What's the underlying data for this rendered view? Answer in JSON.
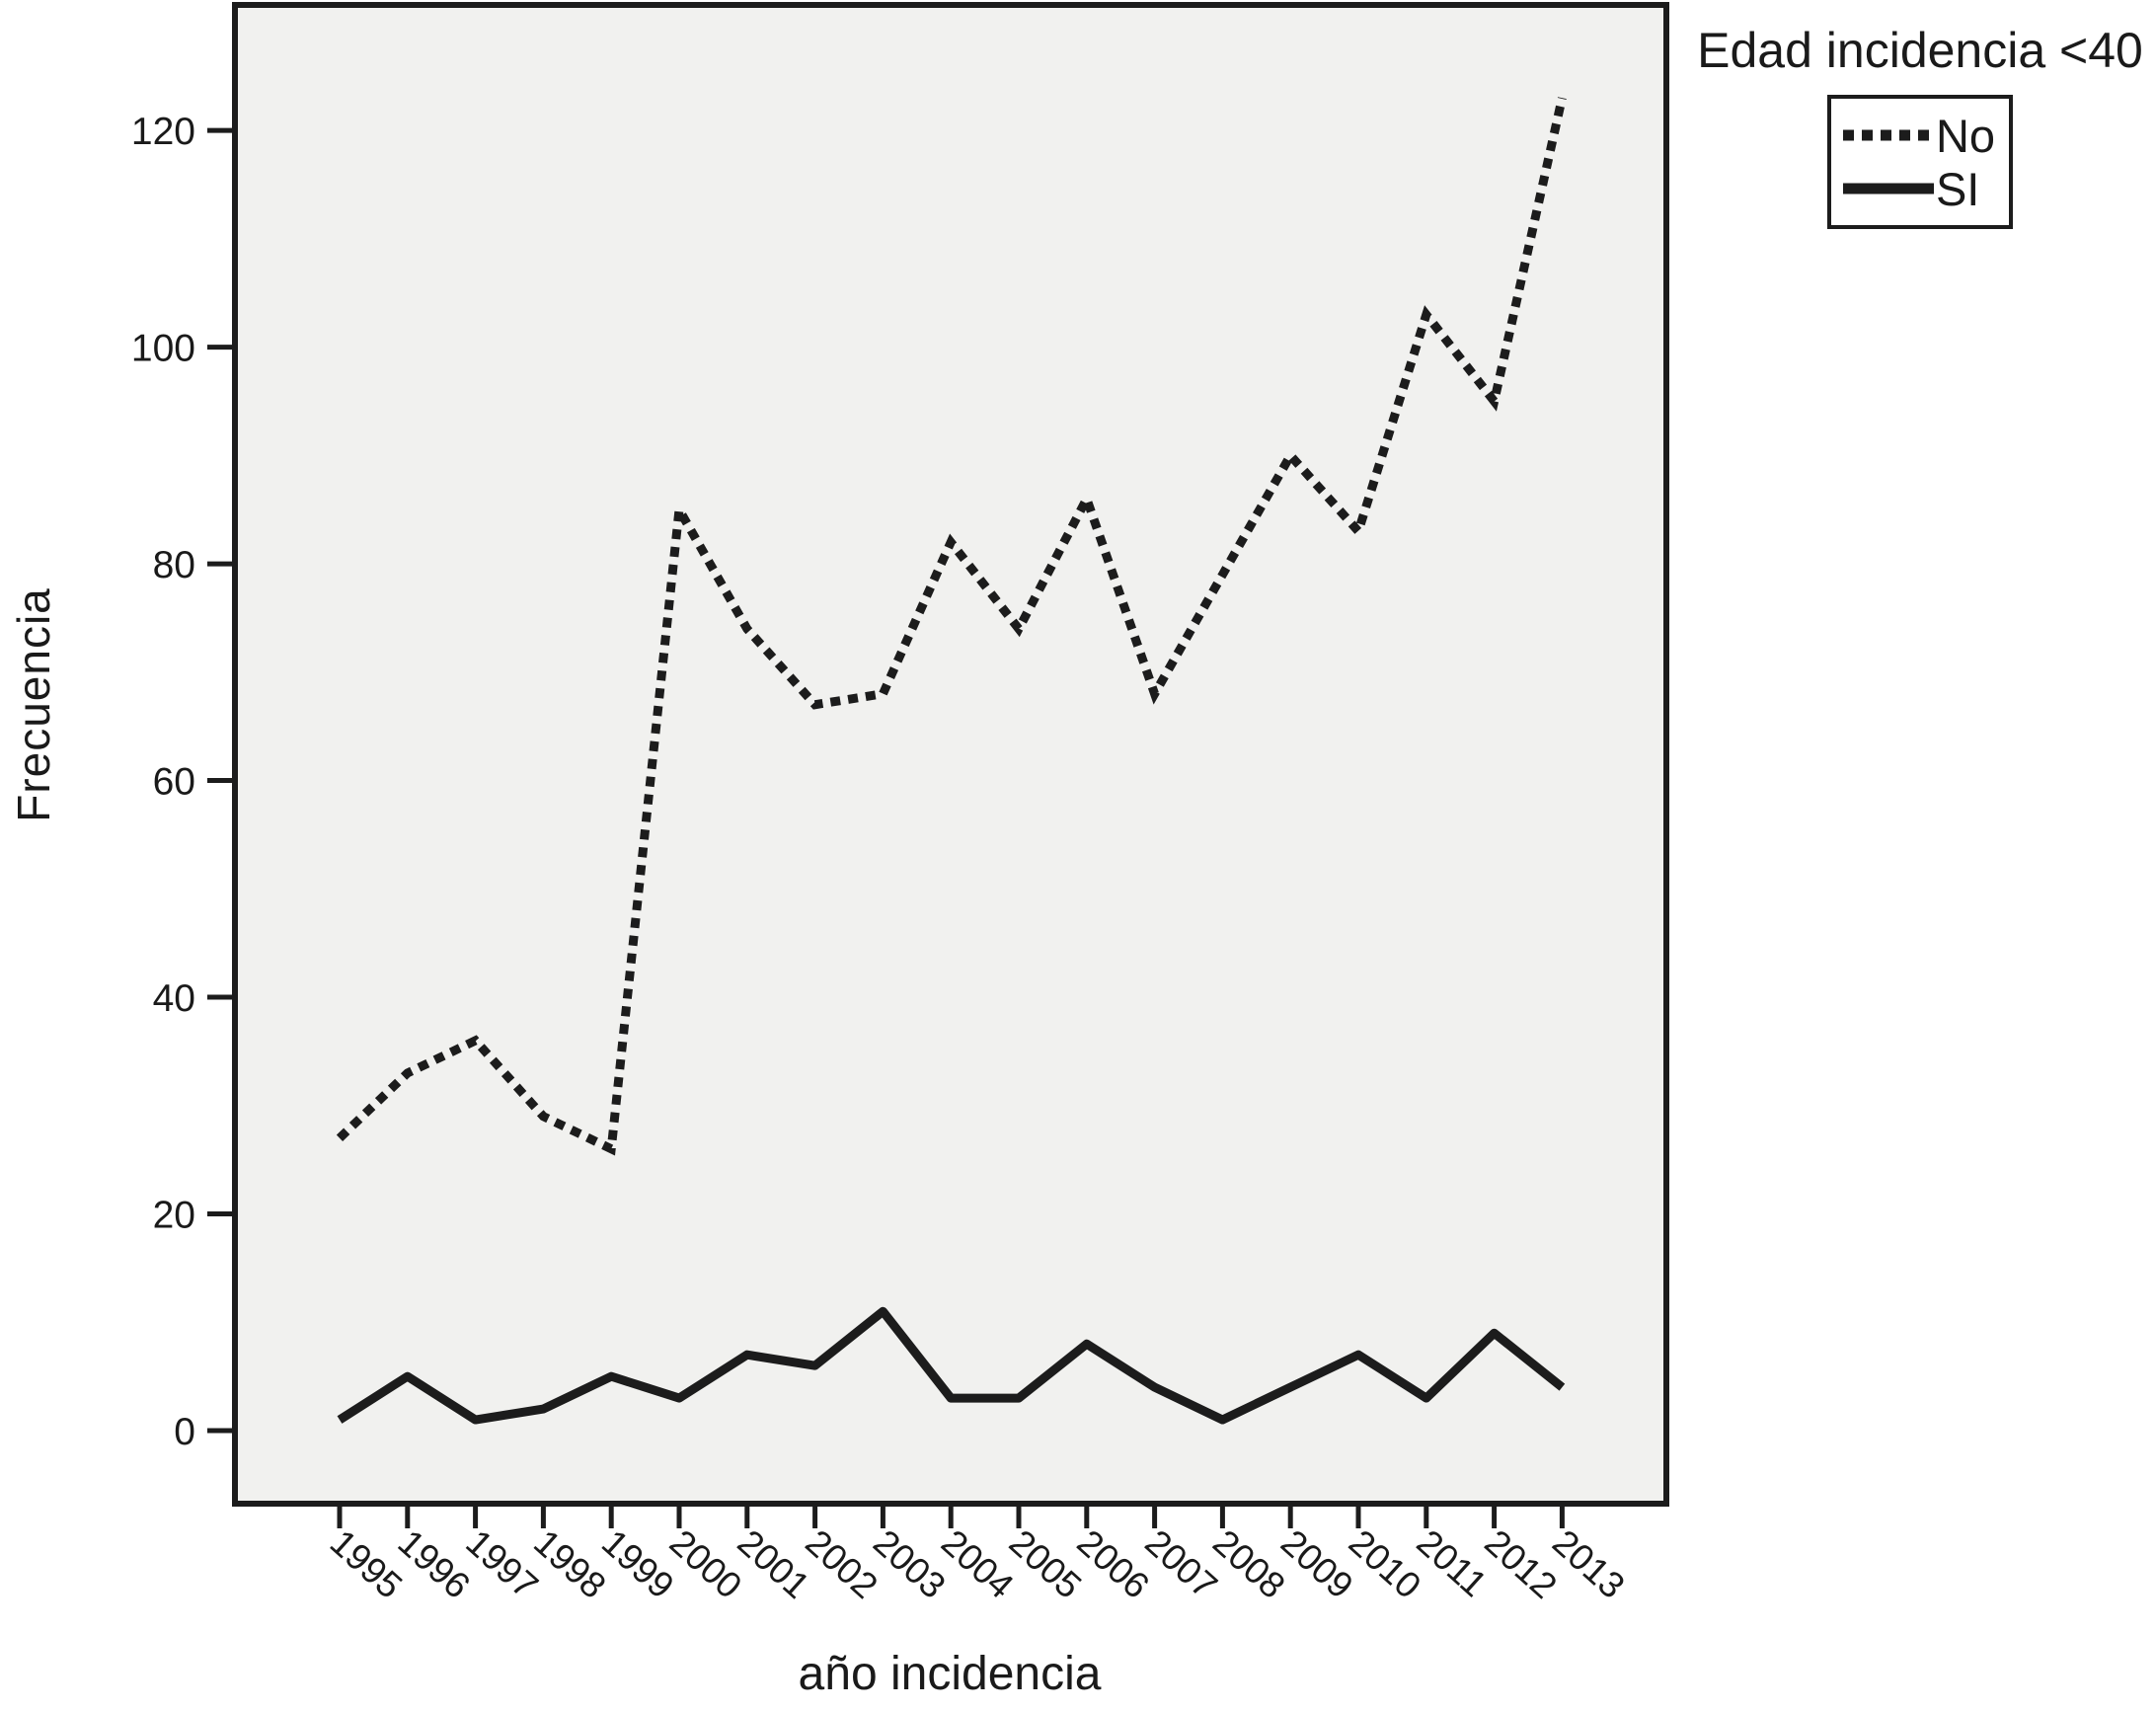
{
  "chart_data": {
    "type": "line",
    "title": "",
    "xlabel": "año incidencia",
    "ylabel": "Frecuencia",
    "categories": [
      "1995",
      "1996",
      "1997",
      "1998",
      "1999",
      "2000",
      "2001",
      "2002",
      "2003",
      "2004",
      "2005",
      "2006",
      "2007",
      "2008",
      "2009",
      "2010",
      "2011",
      "2012",
      "2013"
    ],
    "series": [
      {
        "name": "No",
        "style": "dotted",
        "values": [
          27,
          33,
          36,
          29,
          26,
          85,
          74,
          67,
          68,
          82,
          74,
          86,
          68,
          79,
          90,
          83,
          103,
          95,
          123
        ]
      },
      {
        "name": "SI",
        "style": "solid",
        "values": [
          1,
          5,
          1,
          2,
          5,
          3,
          7,
          6,
          11,
          3,
          3,
          8,
          4,
          1,
          4,
          7,
          3,
          9,
          4
        ]
      }
    ],
    "yticks": [
      0,
      20,
      40,
      60,
      80,
      100,
      120
    ],
    "ylim": [
      -6.7,
      131.6
    ],
    "grid": false,
    "legend": {
      "title": "Edad incidencia <40",
      "position": "top-right",
      "items": [
        {
          "label": "No",
          "style": "dotted"
        },
        {
          "label": "SI",
          "style": "solid"
        }
      ]
    },
    "colors": {
      "line": "#1c1c1c",
      "plot_background": "#f1f1ef",
      "page_background": "#ffffff",
      "text": "#1a1a1a"
    }
  }
}
